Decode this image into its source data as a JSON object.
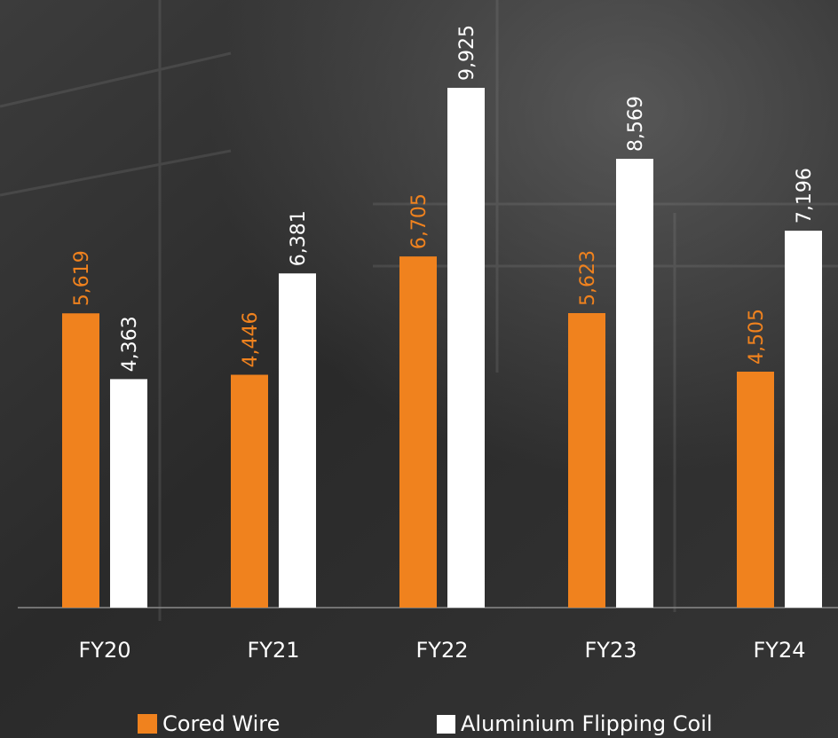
{
  "chart_data": {
    "type": "bar",
    "categories": [
      "FY20",
      "FY21",
      "FY22",
      "FY23",
      "FY24"
    ],
    "series": [
      {
        "name": "Cored Wire",
        "color": "#f0821e",
        "values": [
          5619,
          4446,
          6705,
          5623,
          4505
        ],
        "value_labels": [
          "5,619",
          "4,446",
          "6,705",
          "5,623",
          "4,505"
        ]
      },
      {
        "name": "Aluminium Flipping Coil",
        "color": "#ffffff",
        "values": [
          4363,
          6381,
          9925,
          8569,
          7196
        ],
        "value_labels": [
          "4,363",
          "6,381",
          "9,925",
          "8,569",
          "7,196"
        ]
      }
    ]
  }
}
